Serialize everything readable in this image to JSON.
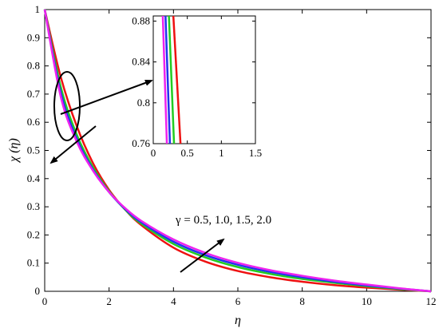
{
  "chart_data": {
    "type": "line",
    "xlabel": "η",
    "ylabel": "χ (η)",
    "xlim": [
      0,
      12
    ],
    "ylim": [
      0,
      1
    ],
    "x_ticks": [
      "0",
      "2",
      "4",
      "6",
      "8",
      "10",
      "12"
    ],
    "y_ticks": [
      "0",
      "0.1",
      "0.2",
      "0.3",
      "0.4",
      "0.5",
      "0.6",
      "0.7",
      "0.8",
      "0.9",
      "1"
    ],
    "grid": false,
    "series": [
      {
        "color": "#ee1111",
        "x": [
          0,
          0.5,
          1,
          1.5,
          2,
          2.5,
          3,
          4,
          5,
          6,
          7,
          8,
          9,
          10,
          11,
          12
        ],
        "y": [
          1.0,
          0.76,
          0.585,
          0.455,
          0.36,
          0.29,
          0.235,
          0.155,
          0.105,
          0.072,
          0.05,
          0.034,
          0.022,
          0.013,
          0.006,
          0.0
        ]
      },
      {
        "color": "#22cc22",
        "x": [
          0,
          0.5,
          1,
          1.5,
          2,
          2.5,
          3,
          4,
          5,
          6,
          7,
          8,
          9,
          10,
          11,
          12
        ],
        "y": [
          1.0,
          0.725,
          0.555,
          0.44,
          0.355,
          0.29,
          0.24,
          0.168,
          0.12,
          0.086,
          0.062,
          0.044,
          0.03,
          0.018,
          0.008,
          0.0
        ]
      },
      {
        "color": "#2233ee",
        "x": [
          0,
          0.5,
          1,
          1.5,
          2,
          2.5,
          3,
          4,
          5,
          6,
          7,
          8,
          9,
          10,
          11,
          12
        ],
        "y": [
          1.0,
          0.705,
          0.54,
          0.432,
          0.352,
          0.292,
          0.245,
          0.176,
          0.128,
          0.094,
          0.069,
          0.05,
          0.034,
          0.021,
          0.01,
          0.0
        ]
      },
      {
        "color": "#ee22ee",
        "x": [
          0,
          0.5,
          1,
          1.5,
          2,
          2.5,
          3,
          4,
          5,
          6,
          7,
          8,
          9,
          10,
          11,
          12
        ],
        "y": [
          1.0,
          0.69,
          0.53,
          0.428,
          0.352,
          0.295,
          0.25,
          0.184,
          0.136,
          0.101,
          0.075,
          0.055,
          0.038,
          0.024,
          0.011,
          0.0
        ]
      }
    ],
    "inset": {
      "xlim": [
        0,
        1.5
      ],
      "ylim": [
        0.76,
        0.885
      ],
      "x_ticks": [
        "0",
        "0.5",
        "1",
        "1.5"
      ],
      "y_ticks": [
        "0.76",
        "0.8",
        "0.84",
        "0.88"
      ],
      "series": [
        {
          "color": "#ee1111",
          "x": [
            0.295,
            0.4
          ],
          "y": [
            0.885,
            0.76
          ]
        },
        {
          "color": "#22cc22",
          "x": [
            0.23,
            0.305
          ],
          "y": [
            0.885,
            0.76
          ]
        },
        {
          "color": "#2233ee",
          "x": [
            0.18,
            0.245
          ],
          "y": [
            0.885,
            0.76
          ]
        },
        {
          "color": "#ee22ee",
          "x": [
            0.14,
            0.2
          ],
          "y": [
            0.885,
            0.76
          ]
        }
      ]
    },
    "annotations": [
      {
        "text": "γ = 0.5, 1.0, 1.5, 2.0"
      }
    ]
  }
}
